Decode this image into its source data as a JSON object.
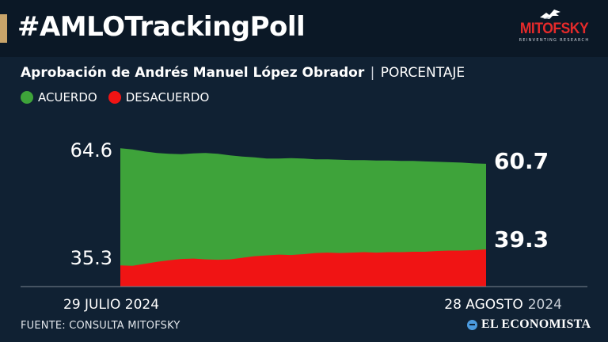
{
  "header": {
    "hashtag": "#AMLOTrackingPoll",
    "logo_name": "MITOFSKY",
    "logo_tagline": "REINVENTING RESEARCH"
  },
  "subtitle": {
    "title": "Aprobación de Andrés Manuel López Obrador",
    "separator": "|",
    "unit": "PORCENTAJE"
  },
  "legend": [
    {
      "label": "ACUERDO",
      "color": "#3ea33a"
    },
    {
      "label": "DESACUERDO",
      "color": "#f01414"
    }
  ],
  "footer": {
    "source": "FUENTE: CONSULTA MITOFSKY",
    "brand": "EL ECONOMISTA"
  },
  "chart_data": {
    "type": "area",
    "title": "Aprobación de Andrés Manuel López Obrador",
    "unit": "PORCENTAJE",
    "x": [
      "29 JULIO 2024",
      "30",
      "31",
      "1",
      "2",
      "3",
      "4",
      "5",
      "6",
      "7",
      "8",
      "9",
      "10",
      "11",
      "12",
      "13",
      "14",
      "15",
      "16",
      "17",
      "18",
      "19",
      "20",
      "21",
      "22",
      "23",
      "24",
      "25",
      "26",
      "27",
      "28 AGOSTO 2024"
    ],
    "x_start_label": "29 JULIO 2024",
    "x_end_label_main": "28 AGOSTO",
    "x_end_label_year": "2024",
    "ylim": [
      30,
      68
    ],
    "series": [
      {
        "name": "ACUERDO",
        "color": "#3ea33a",
        "values": [
          64.6,
          64.3,
          63.8,
          63.4,
          63.2,
          63.1,
          63.3,
          63.4,
          63.2,
          62.8,
          62.5,
          62.3,
          62.0,
          62.0,
          62.1,
          62.0,
          61.8,
          61.8,
          61.7,
          61.6,
          61.6,
          61.5,
          61.5,
          61.4,
          61.4,
          61.3,
          61.2,
          61.1,
          61.0,
          60.8,
          60.7
        ]
      },
      {
        "name": "DESACUERDO",
        "color": "#f01414",
        "values": [
          35.3,
          35.2,
          35.7,
          36.2,
          36.6,
          36.9,
          37.0,
          36.8,
          36.7,
          36.8,
          37.2,
          37.6,
          37.8,
          38.0,
          37.9,
          38.1,
          38.4,
          38.5,
          38.4,
          38.5,
          38.6,
          38.5,
          38.6,
          38.6,
          38.7,
          38.7,
          38.9,
          39.0,
          39.0,
          39.1,
          39.3
        ]
      }
    ],
    "start_labels": {
      "top": "64.6",
      "bottom": "35.3"
    },
    "end_labels": {
      "top": "60.7",
      "bottom": "39.3"
    },
    "grid": false
  }
}
